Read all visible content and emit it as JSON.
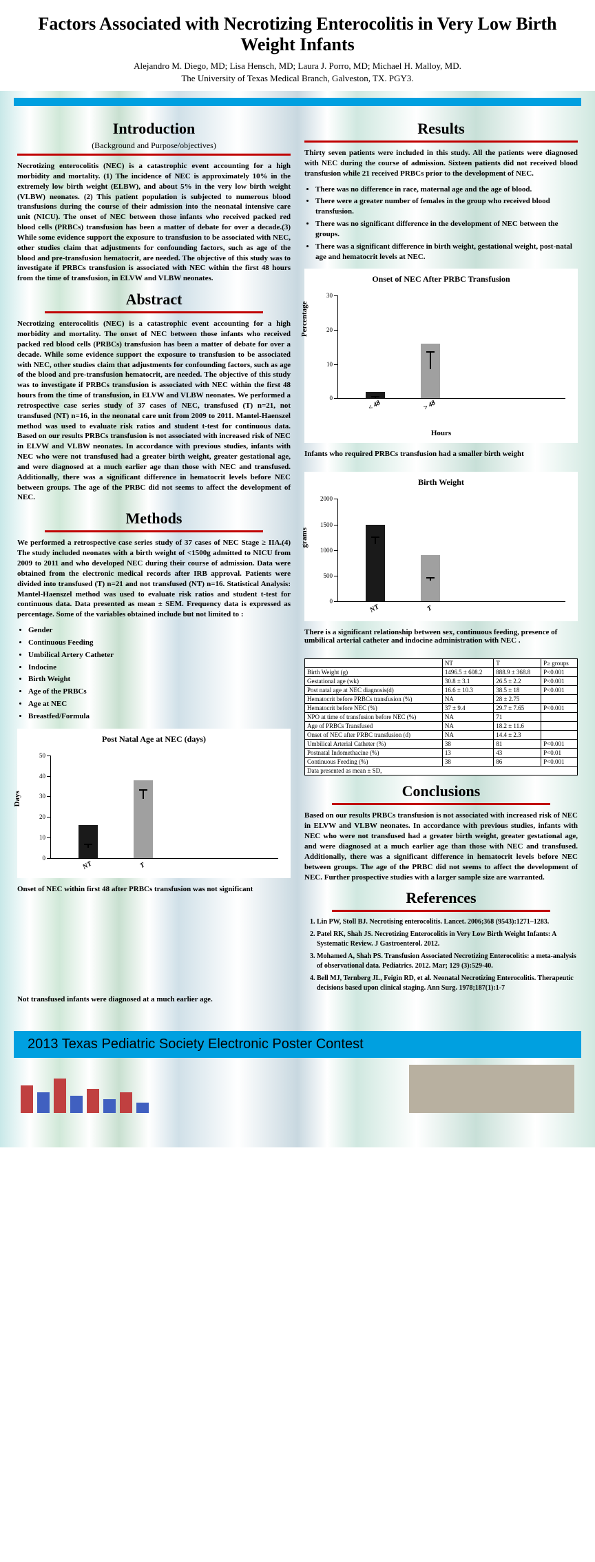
{
  "header": {
    "title": "Factors Associated with Necrotizing Enterocolitis in Very Low Birth Weight Infants",
    "authors": "Alejandro M. Diego, MD; Lisa Hensch, MD; Laura J. Porro, MD; Michael H. Malloy, MD.",
    "affiliation": "The University of Texas Medical Branch, Galveston, TX. PGY3."
  },
  "intro": {
    "title": "Introduction",
    "subtitle": "(Background and Purpose/objectives)",
    "text": "Necrotizing enterocolitis (NEC) is a catastrophic event accounting for a high morbidity and mortality. (1) The incidence of NEC is approximately 10% in the extremely low birth weight (ELBW), and about 5% in the very low birth weight (VLBW) neonates. (2) This patient population is subjected to numerous blood transfusions during the course of their admission into the neonatal intensive care unit (NICU). The onset of NEC between those infants who received packed red blood cells (PRBCs) transfusion has been a matter of debate for over a decade.(3) While some evidence support the exposure to transfusion to be associated with NEC, other studies claim that adjustments for confounding factors, such as age of the blood and pre-transfusion hematocrit, are needed. The objective of this study was to investigate if PRBCs transfusion is associated with NEC within the first 48 hours from the time of transfusion, in ELVW and VLBW neonates."
  },
  "abstract": {
    "title": "Abstract",
    "text": "Necrotizing enterocolitis (NEC) is a catastrophic event accounting for a high morbidity and mortality. The onset of NEC between those infants who received packed red blood cells (PRBCs) transfusion has been a matter of debate for over a decade. While some evidence support the exposure to transfusion to be associated with NEC, other studies claim that adjustments for confounding factors, such as age of the blood and pre-transfusion hematocrit, are needed. The objective of this study was to investigate if PRBCs transfusion is associated with NEC within the first 48 hours from the time of transfusion, in ELVW and VLBW neonates. We performed a retrospective case series study of 37 cases of NEC, transfused (T) n=21, not transfused (NT) n=16, in the neonatal care unit from 2009 to 2011. Mantel-Haenszel method was used to evaluate risk ratios and student t-test for continuous data. Based on our results PRBCs transfusion is not associated with increased risk of NEC in ELVW and VLBW neonates. In accordance with previous studies, infants with NEC who were not transfused had a greater birth weight, greater gestational age, and were diagnosed at a much earlier age than those with NEC and transfused. Additionally, there was a significant difference in hematocrit levels before NEC between groups. The age of the PRBC did not seems to affect the development of NEC."
  },
  "methods": {
    "title": "Methods",
    "text": "We performed a retrospective case series study of 37 cases of NEC Stage ≥ IIA.(4) The study included neonates with a birth weight of <1500g admitted to NICU from 2009 to 2011 and who developed NEC during their course of admission. Data were obtained from the electronic medical records after IRB approval. Patients were divided into transfused (T) n=21 and not transfused (NT) n=16. Statistical Analysis: Mantel-Haenszel method was used to evaluate risk ratios and student t-test for continuous data. Data presented as mean ± SEM. Frequency data is expressed as percentage. Some of the variables obtained include but not limited to :",
    "vars": [
      "Gender",
      "Continuous Feeding",
      "Umbilical Artery Catheter",
      "Indocine",
      "Birth Weight",
      "Age of the PRBCs",
      "Age at NEC",
      "Breastfed/Formula"
    ]
  },
  "chart_postnatal": {
    "title": "Post Natal Age at NEC (days)",
    "ylabel": "Days",
    "xlabel": "",
    "ylim": [
      0,
      50
    ],
    "ystep": 10,
    "categories": [
      "NT",
      "T"
    ],
    "values": [
      16,
      38
    ],
    "errors": [
      4,
      5
    ],
    "bar_colors": [
      "#1a1a1a",
      "#a0a0a0"
    ],
    "note1": "Onset of NEC within first 48 after PRBCs transfusion was not significant",
    "note2": "Not transfused infants were diagnosed at a much earlier age."
  },
  "results": {
    "title": "Results",
    "intro": "Thirty seven patients were included in this study. All the patients were diagnosed with NEC during the course of admission. Sixteen patients did not received blood transfusion while 21 received PRBCs prior to the development of NEC.",
    "bullets": [
      "There was no difference in race, maternal age and the age of blood.",
      "There were a greater number of females in the group who received blood transfusion.",
      "There was no significant difference in the development of NEC between the groups.",
      "There was a significant difference in birth weight, gestational weight, post-natal age and hematocrit levels at NEC."
    ]
  },
  "chart_onset": {
    "title": "Onset of NEC After PRBC Transfusion",
    "ylabel": "Percentage",
    "xlabel": "Hours",
    "ylim": [
      0,
      30
    ],
    "ystep": 10,
    "categories": [
      "< 48",
      "> 48"
    ],
    "values": [
      2,
      16
    ],
    "errors": [
      1,
      9
    ],
    "bar_colors": [
      "#1a1a1a",
      "#a0a0a0"
    ],
    "note": "Infants who required PRBCs transfusion had a smaller birth weight"
  },
  "chart_bw": {
    "title": "Birth Weight",
    "ylabel": "grams",
    "xlabel": "",
    "ylim": [
      0,
      2000
    ],
    "ystep": 500,
    "categories": [
      "NT",
      "T"
    ],
    "values": [
      1500,
      900
    ],
    "errors": [
      150,
      100
    ],
    "bar_colors": [
      "#1a1a1a",
      "#a0a0a0"
    ],
    "note": "There is a significant relationship between sex, continuous feeding, presence of umbilical arterial catheter and indocine administration with NEC ."
  },
  "table": {
    "headers": [
      "",
      "NT",
      "T",
      "P≥ groups"
    ],
    "rows": [
      [
        "Birth Weight (g)",
        "1496.5 ± 608.2",
        "888.9 ± 368.8",
        "P<0.001"
      ],
      [
        "Gestational age (wk)",
        "30.8 ± 3.1",
        "26.5 ± 2.2",
        "P<0.001"
      ],
      [
        "Post natal age at NEC diagnosis(d)",
        "16.6 ± 10.3",
        "38.5 ± 18",
        "P<0.001"
      ],
      [
        "Hematocrit before PRBCs transfusion (%)",
        "NA",
        "28 ± 2.75",
        ""
      ],
      [
        "Hematocrit before NEC (%)",
        "37 ± 9.4",
        "29.7 ± 7.65",
        "P<0.001"
      ],
      [
        "NPO at time of transfusion before NEC (%)",
        "NA",
        "71",
        ""
      ],
      [
        "Age of PRBCs Transfused",
        "NA",
        "18.2 ± 11.6",
        ""
      ],
      [
        "Onset of NEC after PRBC transfusion (d)",
        "NA",
        "14.4 ± 2.3",
        ""
      ],
      [
        "Umbilical Arterial Catheter (%)",
        "38",
        "81",
        "P<0.001"
      ],
      [
        "Postnatal Indomethacine (%)",
        "13",
        "43",
        "P<0.01"
      ],
      [
        "Continuous Feeding (%)",
        "38",
        "86",
        "P<0.001"
      ]
    ],
    "footer": "Data presented as mean ± SD,"
  },
  "conclusions": {
    "title": "Conclusions",
    "text": "Based on our results PRBCs transfusion is not associated with increased risk of NEC in ELVW and VLBW neonates. In accordance with previous studies, infants with NEC who were not transfused had a greater birth weight, greater gestational age, and were diagnosed at a much earlier age than those with NEC and transfused. Additionally, there was a significant difference in hematocrit levels before NEC between groups. The age of the PRBC did not seems to affect the development of NEC. Further prospective studies with a larger sample size are warranted."
  },
  "references": {
    "title": "References",
    "items": [
      "Lin PW, Stoll BJ. Necrotising enterocolitis. Lancet. 2006;368 (9543):1271–1283.",
      "Patel RK, Shah JS. Necrotizing Enterocolitis in Very Low Birth Weight Infants: A Systematic Review. J Gastroenterol. 2012.",
      "Mohamed A, Shah PS. Transfusion Associated Necrotizing Enterocolitis: a meta-analysis of observational data. Pediatrics. 2012. Mar; 129 (3):529-40.",
      "Bell MJ, Ternberg JL, Feigin RD, et al. Neonatal Necrotizing Enterocolitis. Therapeutic decisions based upon clinical staging. Ann Surg. 1978;187(1):1-7"
    ]
  },
  "footer": "2013 Texas Pediatric Society Electronic Poster Contest",
  "mini_chart": {
    "colors": [
      "#c04040",
      "#4060c0",
      "#c04040",
      "#4060c0",
      "#c04040",
      "#4060c0",
      "#c04040",
      "#4060c0"
    ],
    "heights": [
      40,
      30,
      50,
      25,
      35,
      20,
      30,
      15
    ]
  }
}
